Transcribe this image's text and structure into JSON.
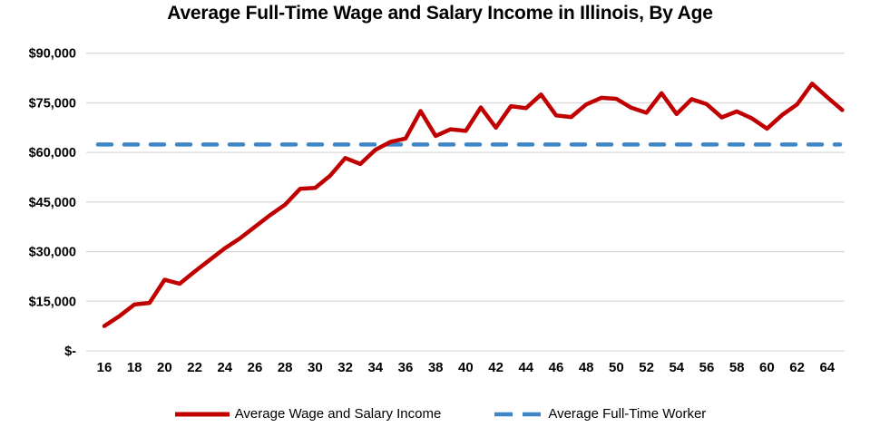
{
  "chart_data": {
    "type": "line",
    "title": "Average Full-Time Wage and Salary Income in Illinois, By Age",
    "x_label": "",
    "y_label": "",
    "x": [
      16,
      17,
      18,
      19,
      20,
      21,
      22,
      23,
      24,
      25,
      26,
      27,
      28,
      29,
      30,
      31,
      32,
      33,
      34,
      35,
      36,
      37,
      38,
      39,
      40,
      41,
      42,
      43,
      44,
      45,
      46,
      47,
      48,
      49,
      50,
      51,
      52,
      53,
      54,
      55,
      56,
      57,
      58,
      59,
      60,
      61,
      62,
      63,
      64,
      65
    ],
    "series": [
      {
        "name": "Average Wage and Salary Income",
        "type": "line",
        "color": "#C00000",
        "style": "solid",
        "values": [
          7500,
          10500,
          14000,
          14500,
          21500,
          20300,
          24000,
          27500,
          31000,
          34000,
          37500,
          41000,
          44200,
          49000,
          49300,
          53000,
          58300,
          56500,
          60800,
          63200,
          64200,
          72500,
          65000,
          67000,
          66500,
          73600,
          67500,
          74000,
          73400,
          77500,
          71200,
          70700,
          74500,
          76500,
          76200,
          73500,
          72000,
          77900,
          71600,
          76100,
          74600,
          70600,
          72400,
          70300,
          67200,
          71300,
          74500,
          80800,
          76700,
          72800
        ]
      },
      {
        "name": "Average Full-Time Worker",
        "type": "reference-line",
        "color": "#3E86C6",
        "style": "dashed",
        "constant_value": 62400
      }
    ],
    "y_axis": {
      "min": 0,
      "max": 90000,
      "step": 15000,
      "tick_labels": [
        "$-",
        "$15,000",
        "$30,000",
        "$45,000",
        "$60,000",
        "$75,000",
        "$90,000"
      ]
    },
    "x_axis": {
      "tick_labels": [
        "16",
        "18",
        "20",
        "22",
        "24",
        "26",
        "28",
        "30",
        "32",
        "34",
        "36",
        "38",
        "40",
        "42",
        "44",
        "46",
        "48",
        "50",
        "52",
        "54",
        "56",
        "58",
        "60",
        "62",
        "64"
      ]
    },
    "grid": {
      "color": "#D9D9D9",
      "horizontal": true,
      "vertical": false
    },
    "legend_position": "bottom"
  }
}
